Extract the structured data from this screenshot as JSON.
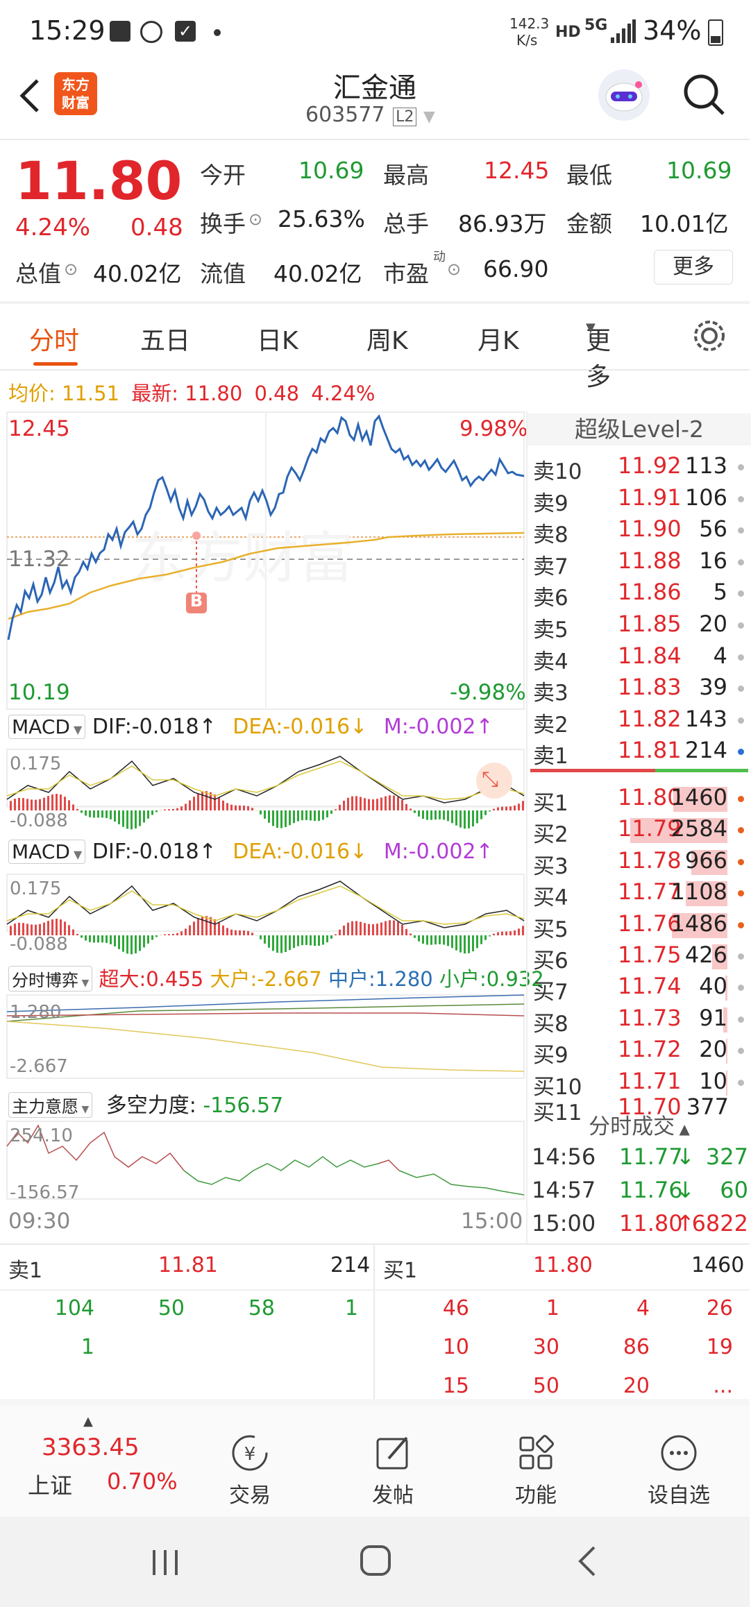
{
  "status_bar": {
    "time": "15:29",
    "net_speed": "142.3",
    "net_unit": "K/s",
    "hd": "HD",
    "network": "5G",
    "battery": "34%"
  },
  "header": {
    "title": "汇金通",
    "code": "603577",
    "level": "L2",
    "brand": "东方\n财富"
  },
  "quote": {
    "price": "11.80",
    "pct": "4.24%",
    "change": "0.48",
    "open_label": "今开",
    "open": "10.69",
    "high_label": "最高",
    "high": "12.45",
    "low_label": "最低",
    "low": "10.69",
    "turnover_label": "换手",
    "turnover": "25.63%",
    "volume_label": "总手",
    "volume": "86.93万",
    "amount_label": "金额",
    "amount": "10.01亿",
    "mktcap_label": "总值",
    "mktcap": "40.02亿",
    "float_label": "流值",
    "float_cap": "40.02亿",
    "pe_label": "市盈",
    "pe_sup": "动",
    "pe": "66.90",
    "more": "更多"
  },
  "tabs": [
    "分时",
    "五日",
    "日K",
    "周K",
    "月K",
    "更多"
  ],
  "info_line": {
    "avg_label": "均价:",
    "avg": "11.51",
    "latest_label": "最新:",
    "latest": "11.80",
    "chg": "0.48",
    "pct": "4.24%"
  },
  "chart": {
    "ymax": "12.45",
    "ymid": "11.32",
    "ymin": "10.19",
    "pmax": "9.98%",
    "pmin": "-9.98%",
    "marker": "B",
    "watermark": "东方财富",
    "t_start": "09:30",
    "t_end": "15:00"
  },
  "macd1": {
    "name": "MACD",
    "dif": "DIF:-0.018↑",
    "dea": "DEA:-0.016↓",
    "m": "M:-0.002↑",
    "top": "0.175",
    "bottom": "-0.088"
  },
  "macd2": {
    "name": "MACD",
    "dif": "DIF:-0.018↑",
    "dea": "DEA:-0.016↓",
    "m": "M:-0.002↑",
    "top": "0.175",
    "bottom": "-0.088"
  },
  "game": {
    "name": "分时博弈",
    "super": "超大:0.455",
    "large": "大户:-2.667",
    "mid": "中户:1.280",
    "small": "小户:0.932",
    "top": "1.280",
    "bottom": "-2.667"
  },
  "main_intent": {
    "name": "主力意愿",
    "label": "多空力度:",
    "value": "-156.57",
    "top": "254.10",
    "bottom": "-156.57"
  },
  "level2_title": "超级Level-2",
  "asks": [
    {
      "label": "卖10",
      "price": "11.92",
      "vol": "113"
    },
    {
      "label": "卖9",
      "price": "11.91",
      "vol": "106"
    },
    {
      "label": "卖8",
      "price": "11.90",
      "vol": "56"
    },
    {
      "label": "卖7",
      "price": "11.88",
      "vol": "16"
    },
    {
      "label": "卖6",
      "price": "11.86",
      "vol": "5"
    },
    {
      "label": "卖5",
      "price": "11.85",
      "vol": "20"
    },
    {
      "label": "卖4",
      "price": "11.84",
      "vol": "4"
    },
    {
      "label": "卖3",
      "price": "11.83",
      "vol": "39"
    },
    {
      "label": "卖2",
      "price": "11.82",
      "vol": "143"
    },
    {
      "label": "卖1",
      "price": "11.81",
      "vol": "214"
    }
  ],
  "bids": [
    {
      "label": "买1",
      "price": "11.80",
      "vol": "1460",
      "bar": 0.56
    },
    {
      "label": "买2",
      "price": "11.79",
      "vol": "2584",
      "bar": 1.0
    },
    {
      "label": "买3",
      "price": "11.78",
      "vol": "966",
      "bar": 0.37
    },
    {
      "label": "买4",
      "price": "11.77",
      "vol": "1108",
      "bar": 0.43
    },
    {
      "label": "买5",
      "price": "11.76",
      "vol": "1486",
      "bar": 0.57
    },
    {
      "label": "买6",
      "price": "11.75",
      "vol": "426",
      "bar": 0.16
    },
    {
      "label": "买7",
      "price": "11.74",
      "vol": "40",
      "bar": 0.02
    },
    {
      "label": "买8",
      "price": "11.73",
      "vol": "91",
      "bar": 0.04
    },
    {
      "label": "买9",
      "price": "11.72",
      "vol": "20",
      "bar": 0.01
    },
    {
      "label": "买10",
      "price": "11.71",
      "vol": "10",
      "bar": 0.01
    }
  ],
  "bid11": {
    "label": "买11",
    "price": "11.70",
    "vol": "377"
  },
  "ticks_title": "分时成交",
  "ticks": [
    {
      "time": "14:56",
      "price": "11.77",
      "arrow": "↓",
      "vol": "327"
    },
    {
      "time": "14:57",
      "price": "11.76",
      "arrow": "↓",
      "vol": "60"
    },
    {
      "time": "15:00",
      "price": "11.80",
      "arrow": "↑",
      "vol": "6822"
    }
  ],
  "queue_left": {
    "label": "卖1",
    "price": "11.81",
    "vol": "214",
    "rows": [
      [
        "104",
        "50",
        "58",
        "1"
      ],
      [
        "1",
        "",
        "",
        ""
      ]
    ]
  },
  "queue_right": {
    "label": "买1",
    "price": "11.80",
    "vol": "1460",
    "rows": [
      [
        "46",
        "1",
        "4",
        "26"
      ],
      [
        "10",
        "30",
        "86",
        "19"
      ],
      [
        "15",
        "50",
        "20",
        "..."
      ]
    ]
  },
  "bottom_nav": {
    "index_value": "3363.45",
    "index_name": "上证",
    "index_pct": "0.70%",
    "trade": "交易",
    "post": "发帖",
    "function": "功能",
    "watch": "设自选"
  }
}
